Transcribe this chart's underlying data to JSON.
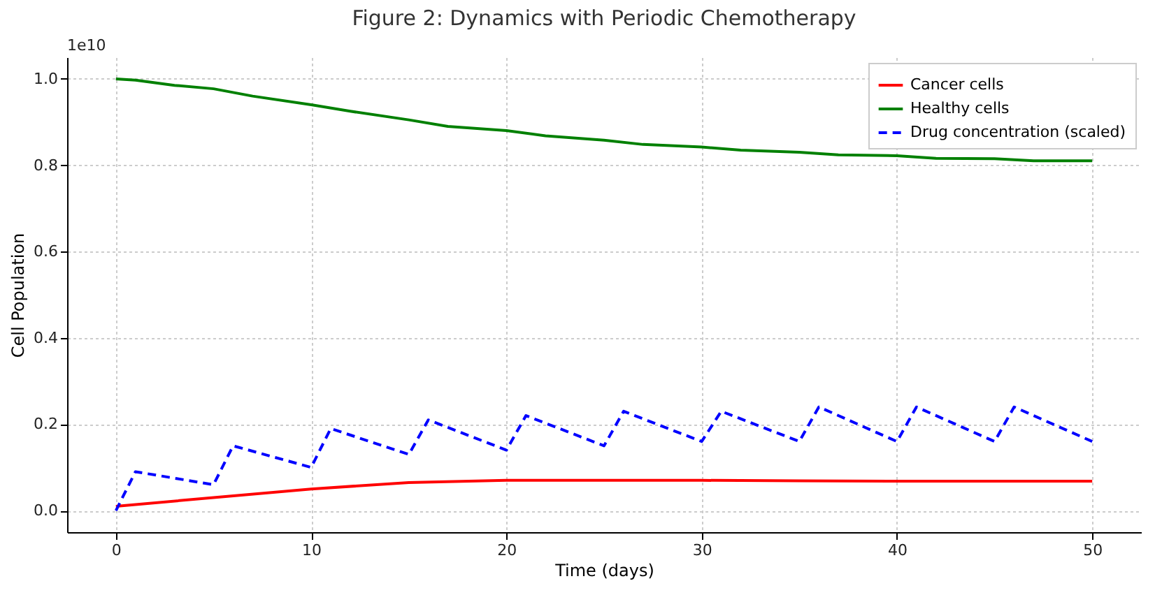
{
  "chart_data": {
    "type": "line",
    "title": "Figure 2: Dynamics with Periodic Chemotherapy",
    "xlabel": "Time (days)",
    "ylabel": "Cell Population",
    "annotations": [
      "1e10"
    ],
    "xlim": [
      -2.5,
      52.5
    ],
    "xticks": [
      0,
      10,
      20,
      30,
      40,
      50
    ],
    "ylim": [
      -0.05,
      1.05
    ],
    "yticks": [
      {
        "value": 0,
        "label": "0.0"
      },
      {
        "value": 0.2,
        "label": "0.2"
      },
      {
        "value": 0.4,
        "label": "0.4"
      },
      {
        "value": 0.6,
        "label": "0.6"
      },
      {
        "value": 0.8,
        "label": "0.8"
      },
      {
        "value": 1,
        "label": "1.0"
      }
    ],
    "grid": true,
    "legend": "top right",
    "series": [
      {
        "name": "Cancer cells",
        "color": "#ff0000",
        "line_style": "solid",
        "x": [
          0,
          5,
          10,
          15,
          20,
          25,
          30,
          35,
          40,
          45,
          50
        ],
        "values": [
          0.01,
          0.03,
          0.05,
          0.065,
          0.07,
          0.07,
          0.07,
          0.069,
          0.068,
          0.068,
          0.068
        ]
      },
      {
        "name": "Healthy cells",
        "color": "#008000",
        "line_style": "solid",
        "x": [
          0,
          1,
          3,
          5,
          7,
          10,
          12,
          15,
          17,
          20,
          22,
          25,
          27,
          30,
          32,
          35,
          37,
          40,
          42,
          45,
          47,
          50
        ],
        "values": [
          1.0,
          0.997,
          0.985,
          0.977,
          0.96,
          0.94,
          0.925,
          0.905,
          0.89,
          0.88,
          0.868,
          0.858,
          0.848,
          0.842,
          0.835,
          0.83,
          0.824,
          0.822,
          0.816,
          0.815,
          0.81,
          0.81
        ]
      },
      {
        "name": "Drug concentration (scaled)",
        "color": "#0000ff",
        "line_style": "dashed",
        "x": [
          0,
          1,
          5,
          6,
          10,
          11,
          15,
          16,
          20,
          21,
          25,
          26,
          30,
          31,
          35,
          36,
          40,
          41,
          45,
          46,
          50
        ],
        "values": [
          0.0,
          0.09,
          0.06,
          0.15,
          0.1,
          0.19,
          0.13,
          0.21,
          0.14,
          0.22,
          0.15,
          0.23,
          0.16,
          0.23,
          0.16,
          0.24,
          0.16,
          0.24,
          0.16,
          0.24,
          0.16
        ]
      }
    ]
  }
}
